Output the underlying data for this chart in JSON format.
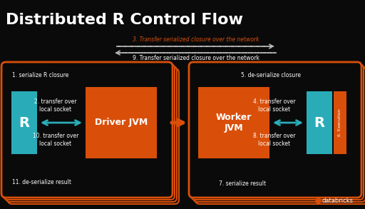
{
  "title": "Distributed R Control Flow",
  "bg_color": "#0a0a0a",
  "orange_color": "#D94F0A",
  "teal_color": "#2AACB8",
  "white_color": "#ffffff",
  "network_arrow_color": "#bbbbbb",
  "step3_text": "3. Transfer serialized closure over the network",
  "step9_text": "9. Transfer serialized closure over the network",
  "driver_label": "Driver JVM",
  "worker_label": "Worker\nJVM",
  "r_label": "R",
  "execution_label": "6. Execution",
  "s1_text": "1. serialize R closure",
  "s2_text": "2. transfer over\nlocal socket",
  "s10_text": "10. transfer over\nlocal socket",
  "s11_text": "11. de-serialize result",
  "s4_text": "4. transfer over\nlocal socket",
  "s5_text": "5. de-serialize closure",
  "s7_text": "7. serialize result",
  "s8_text": "8. transfer over\nlocal socket",
  "databricks_text": "databricks"
}
